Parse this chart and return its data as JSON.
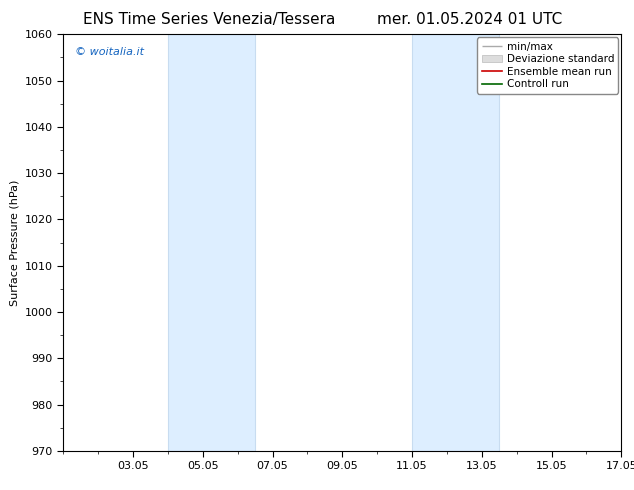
{
  "title_left": "ENS Time Series Venezia/Tessera",
  "title_right": "mer. 01.05.2024 01 UTC",
  "ylabel": "Surface Pressure (hPa)",
  "ylim": [
    970,
    1060
  ],
  "yticks": [
    970,
    980,
    990,
    1000,
    1010,
    1020,
    1030,
    1040,
    1050,
    1060
  ],
  "xlim": [
    0,
    16
  ],
  "xtick_labels": [
    "03.05",
    "05.05",
    "07.05",
    "09.05",
    "11.05",
    "13.05",
    "15.05",
    "17.05"
  ],
  "xtick_positions": [
    2,
    4,
    6,
    8,
    10,
    12,
    14,
    16
  ],
  "shaded_bands": [
    {
      "x_start": 3.0,
      "x_end": 5.5
    },
    {
      "x_start": 10.0,
      "x_end": 12.5
    }
  ],
  "watermark": "© woitalia.it",
  "watermark_color": "#1565C0",
  "background_color": "#ffffff",
  "plot_bg_color": "#ffffff",
  "band_color": "#ddeeff",
  "band_edge_color": "#c8dcf0",
  "legend_items": [
    {
      "label": "min/max",
      "color": "#aaaaaa",
      "style": "hline"
    },
    {
      "label": "Deviazione standard",
      "color": "#cccccc",
      "style": "box"
    },
    {
      "label": "Ensemble mean run",
      "color": "#cc0000",
      "style": "line"
    },
    {
      "label": "Controll run",
      "color": "#006600",
      "style": "line"
    }
  ],
  "title_fontsize": 11,
  "axis_fontsize": 8,
  "tick_fontsize": 8,
  "watermark_fontsize": 8,
  "legend_fontsize": 7.5
}
